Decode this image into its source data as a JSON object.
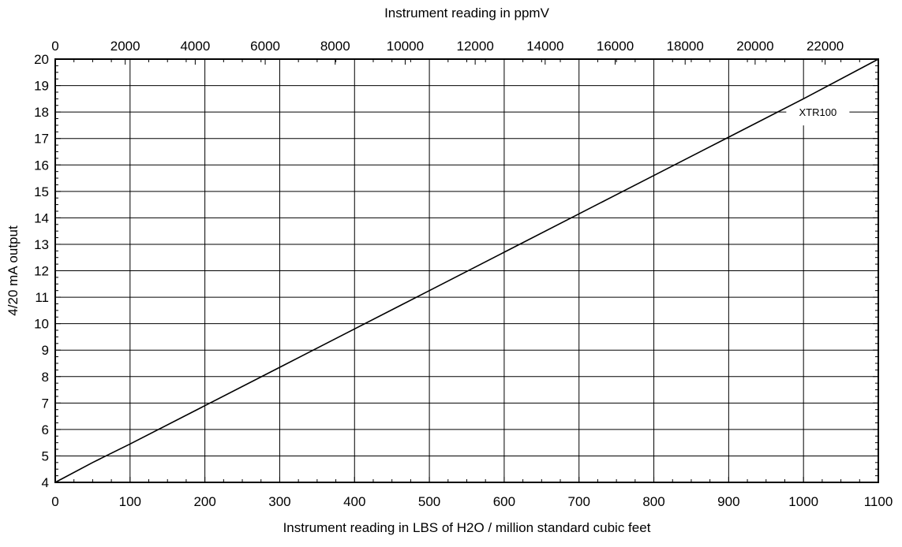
{
  "colors": {
    "background": "#ffffff",
    "line": "#000000",
    "grid": "#000000"
  },
  "chart_data": {
    "type": "line",
    "title": "",
    "xlabel": "Instrument reading in LBS of H2O / million standard cubic feet",
    "x2label": "Instrument reading in ppmV",
    "ylabel": "4/20 mA output",
    "xlim": [
      0,
      1100
    ],
    "x2lim": [
      0,
      23520
    ],
    "ylim": [
      4,
      20
    ],
    "x_ticks": [
      "0",
      "100",
      "200",
      "300",
      "400",
      "500",
      "600",
      "700",
      "800",
      "900",
      "1000",
      "1100"
    ],
    "x2_ticks": [
      "0",
      "2000",
      "4000",
      "6000",
      "8000",
      "10000",
      "12000",
      "14000",
      "16000",
      "18000",
      "20000",
      "22000"
    ],
    "x2_tick_values": [
      0,
      2000,
      4000,
      6000,
      8000,
      10000,
      12000,
      14000,
      16000,
      18000,
      20000,
      22000
    ],
    "y_ticks": [
      "4",
      "5",
      "6",
      "7",
      "8",
      "9",
      "10",
      "11",
      "12",
      "13",
      "14",
      "15",
      "16",
      "17",
      "18",
      "19",
      "20"
    ],
    "grid": true,
    "series": [
      {
        "name": "XTR100",
        "x": [
          0,
          50,
          100,
          200,
          300,
          400,
          500,
          600,
          700,
          800,
          900,
          1000,
          1100
        ],
        "y": [
          4.0,
          4.75,
          5.45,
          6.9,
          8.35,
          9.8,
          11.25,
          12.7,
          14.15,
          15.6,
          17.05,
          18.5,
          20.0
        ]
      }
    ],
    "annotations": [
      {
        "text": "XTR100",
        "x": 1035,
        "y": 18.0
      }
    ]
  }
}
